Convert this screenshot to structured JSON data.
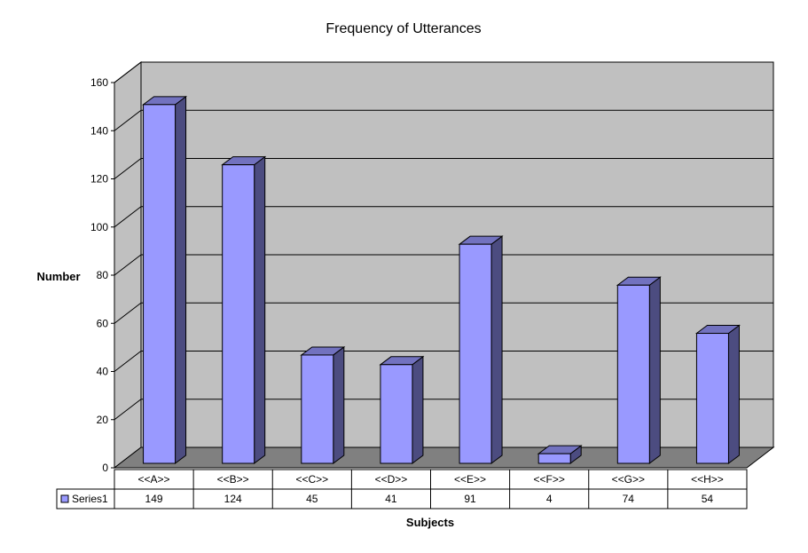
{
  "chart_data": {
    "type": "bar",
    "title": "Frequency of Utterances",
    "xlabel": "Subjects",
    "ylabel": "Number",
    "categories": [
      "<<A>>",
      "<<B>>",
      "<<C>>",
      "<<D>>",
      "<<E>>",
      "<<F>>",
      "<<G>>",
      "<<H>>"
    ],
    "series": [
      {
        "name": "Series1",
        "values": [
          149,
          124,
          45,
          41,
          91,
          4,
          74,
          54
        ]
      }
    ],
    "ylim": [
      0,
      160
    ],
    "yticks": [
      0,
      20,
      40,
      60,
      80,
      100,
      120,
      140,
      160
    ],
    "grid": true,
    "data_table": true,
    "three_d": true,
    "colors": {
      "bar_front": "#9999FF",
      "bar_side": "#4C4C80",
      "bar_top": "#7272BF",
      "back_wall": "#C0C0C0",
      "side_wall": "#C0C0C0",
      "floor": "#808080"
    }
  }
}
